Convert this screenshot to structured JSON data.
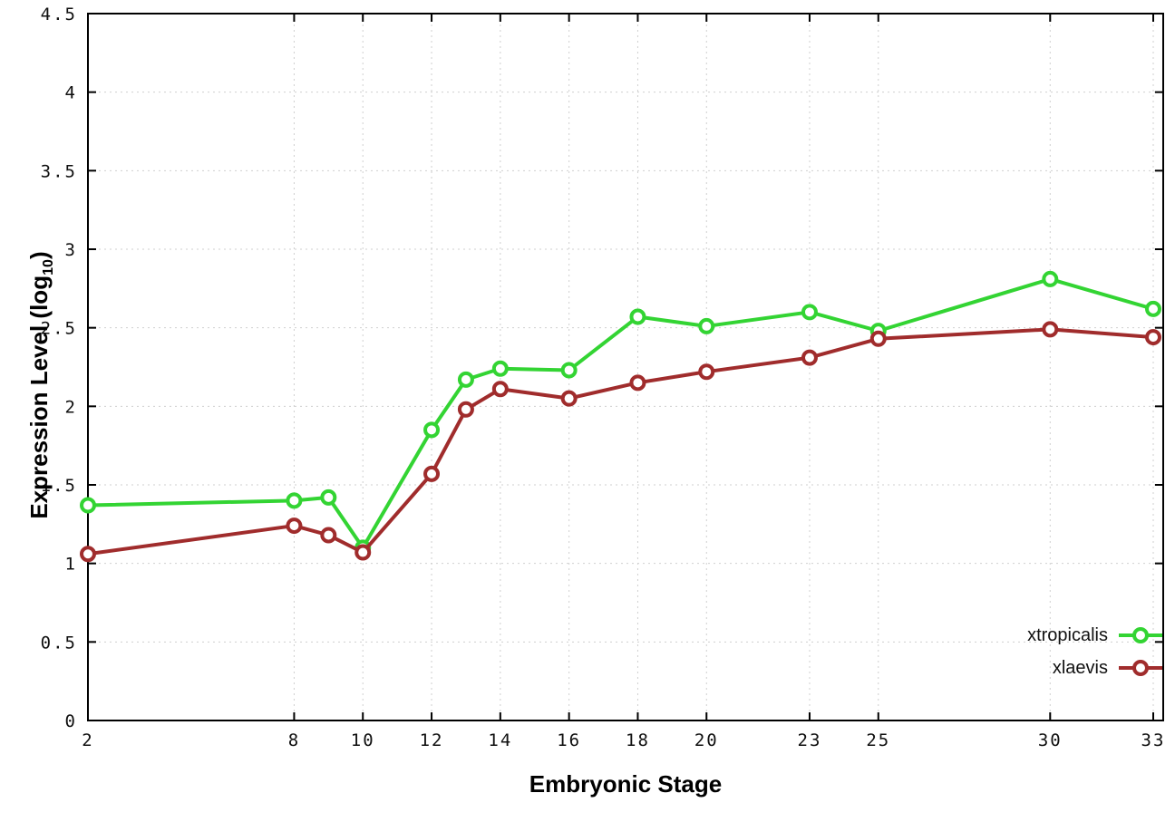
{
  "labels": {
    "y_pre": "Expression Level (log",
    "y_sub": "10",
    "y_post": ")"
  },
  "chart_data": {
    "type": "line",
    "title": "",
    "xlabel": "Embryonic Stage",
    "ylabel": "Expression Level (log10)",
    "xlim": [
      2,
      33
    ],
    "ylim": [
      0,
      4.5
    ],
    "x_ticks": [
      2,
      8,
      10,
      12,
      14,
      16,
      18,
      20,
      23,
      25,
      30,
      33
    ],
    "y_ticks": [
      0,
      0.5,
      1,
      1.5,
      2,
      2.5,
      3,
      3.5,
      4,
      4.5
    ],
    "grid": true,
    "grid_color": "#cfcfcf",
    "border_color": "#000000",
    "background_color": "#ffffff",
    "legend_position": "bottom-right",
    "x": [
      2,
      8,
      9,
      10,
      12,
      13,
      14,
      16,
      18,
      20,
      23,
      25,
      30,
      33
    ],
    "series": [
      {
        "name": "xtropicalis",
        "color": "#33d433",
        "values": [
          1.37,
          1.4,
          1.42,
          1.1,
          1.85,
          2.17,
          2.24,
          2.23,
          2.57,
          2.51,
          2.6,
          2.48,
          2.81,
          2.62
        ]
      },
      {
        "name": "xlaevis",
        "color": "#a02c2c",
        "values": [
          1.06,
          1.24,
          1.18,
          1.07,
          1.57,
          1.98,
          2.11,
          2.05,
          2.15,
          2.22,
          2.31,
          2.43,
          2.49,
          2.44
        ]
      }
    ]
  }
}
